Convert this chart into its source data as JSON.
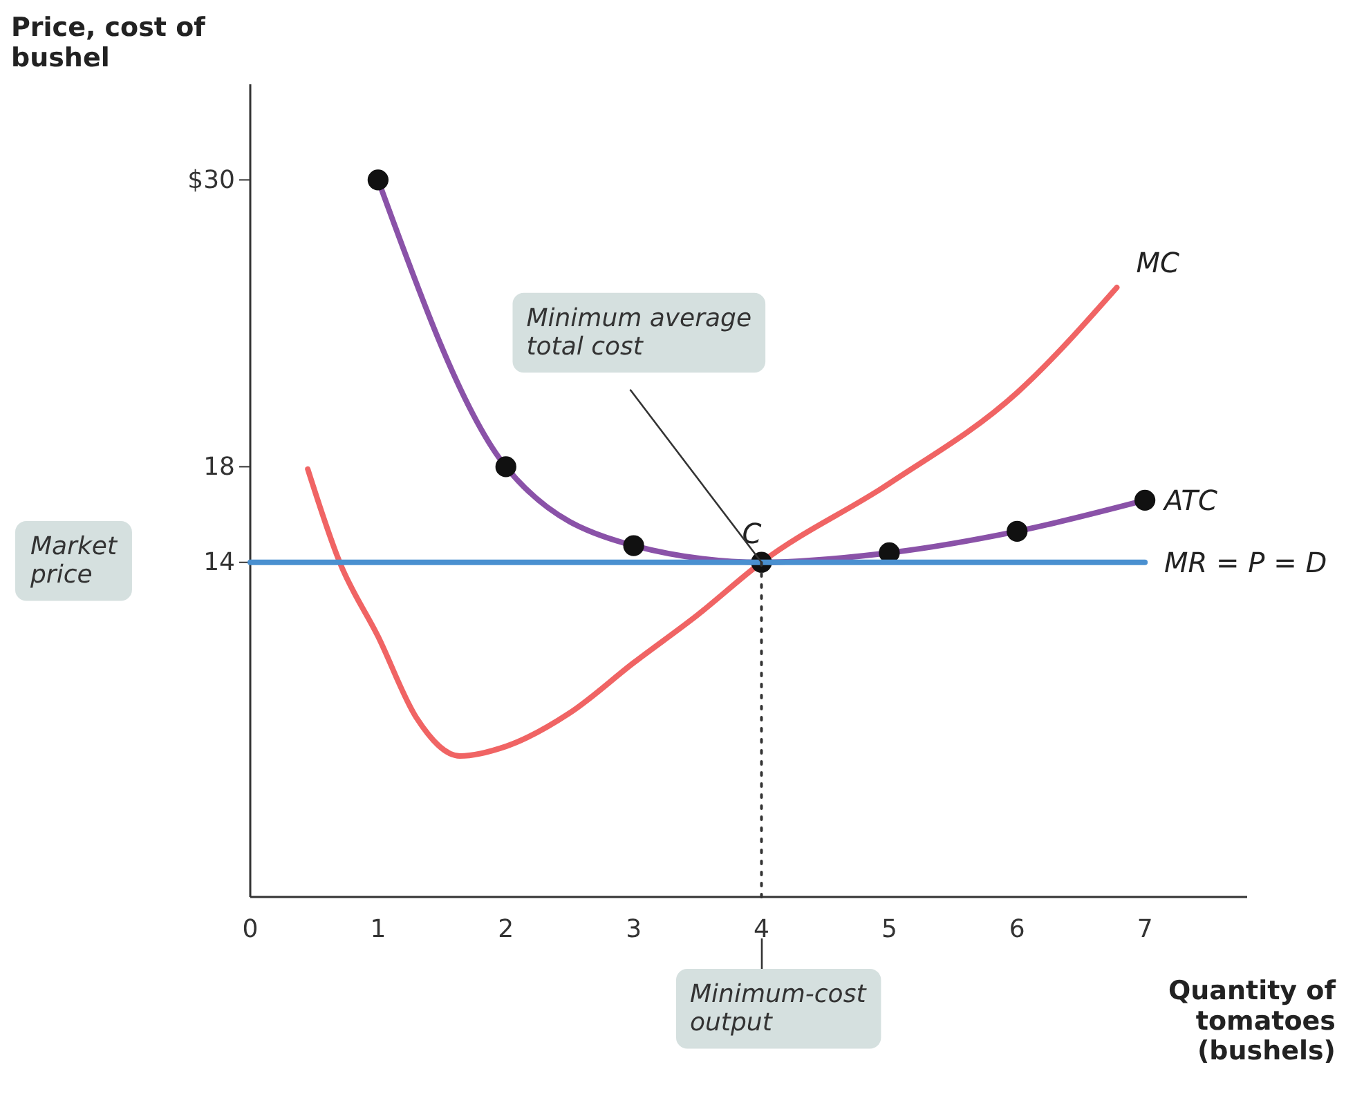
{
  "chart_data": {
    "type": "line",
    "ylabel": "Price, cost of bushel",
    "xlabel": "Quantity of tomatoes (bushels)",
    "xlim": [
      0,
      7.8
    ],
    "ylim": [
      0,
      34
    ],
    "xticks": [
      0,
      1,
      2,
      3,
      4,
      5,
      6,
      7
    ],
    "yticks": [
      14,
      18,
      {
        "value": 30,
        "label": "$30"
      }
    ],
    "grid": false,
    "series": [
      {
        "name": "MC",
        "color": "#f06464",
        "marker": "none",
        "x": [
          0.45,
          0.7,
          1,
          1.3,
          1.64,
          2,
          2.5,
          3,
          3.5,
          4,
          5,
          6,
          6.78
        ],
        "values": [
          17.9,
          14,
          10.9,
          7.5,
          5.9,
          6.3,
          7.7,
          9.8,
          11.8,
          14,
          17.3,
          21.1,
          25.5
        ]
      },
      {
        "name": "ATC",
        "color": "#8a52a8",
        "marker": "circle",
        "x": [
          1,
          2,
          3,
          4,
          5,
          6,
          7
        ],
        "values": [
          30,
          18,
          14.7,
          14,
          14.4,
          15.3,
          16.6
        ]
      },
      {
        "name": "MR = P = D",
        "color": "#4a90d0",
        "marker": "none",
        "x": [
          0,
          7
        ],
        "values": [
          14,
          14
        ]
      },
      {
        "color": "#333333",
        "marker": "none",
        "line_style": "dotted",
        "x": [
          4,
          4
        ],
        "values": [
          0,
          14
        ]
      }
    ],
    "annotations": [
      {
        "text": "C",
        "x": 4,
        "y": 14
      },
      {
        "text": "Minimum average total cost",
        "x": 4,
        "y": 14
      },
      "Market price",
      "Minimum-cost output"
    ]
  }
}
